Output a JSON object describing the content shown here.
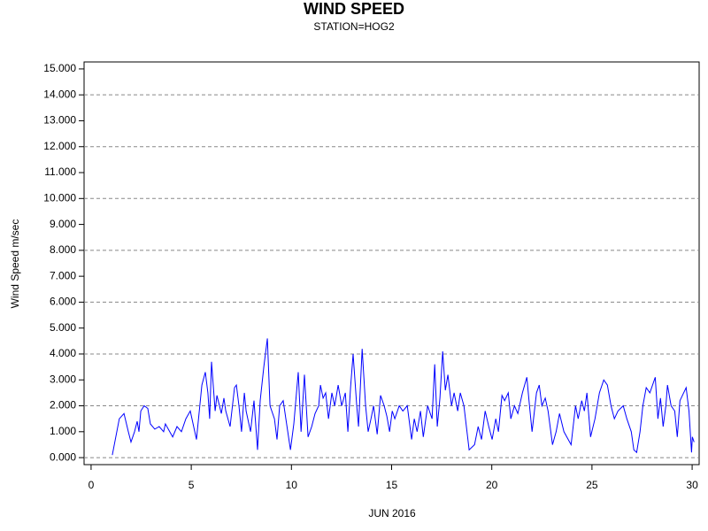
{
  "chart_data": {
    "type": "line",
    "title": "WIND SPEED",
    "subtitle": "STATION=HOG2",
    "x_label": "JUN 2016",
    "y_label": "Wind Speed m/sec",
    "x": [
      1.06,
      1.41,
      1.64,
      1.86,
      1.99,
      2.17,
      2.3,
      2.39,
      2.48,
      2.65,
      2.83,
      2.96,
      3.18,
      3.4,
      3.62,
      3.71,
      4.07,
      4.29,
      4.51,
      4.73,
      4.95,
      5.26,
      5.53,
      5.7,
      5.83,
      5.92,
      6.01,
      6.19,
      6.28,
      6.5,
      6.63,
      6.72,
      6.94,
      7.16,
      7.25,
      7.38,
      7.51,
      7.65,
      7.74,
      7.96,
      8.13,
      8.31,
      8.44,
      8.62,
      8.8,
      8.93,
      9.15,
      9.28,
      9.41,
      9.59,
      9.72,
      9.95,
      10.12,
      10.34,
      10.48,
      10.65,
      10.83,
      11.01,
      11.18,
      11.36,
      11.45,
      11.58,
      11.71,
      11.85,
      12.02,
      12.16,
      12.33,
      12.51,
      12.69,
      12.82,
      12.95,
      13.08,
      13.26,
      13.35,
      13.53,
      13.7,
      13.83,
      13.97,
      14.1,
      14.28,
      14.45,
      14.63,
      14.76,
      14.9,
      15.03,
      15.16,
      15.38,
      15.56,
      15.78,
      16.0,
      16.13,
      16.27,
      16.44,
      16.58,
      16.8,
      17.02,
      17.15,
      17.28,
      17.41,
      17.55,
      17.68,
      17.81,
      17.99,
      18.12,
      18.3,
      18.43,
      18.61,
      18.87,
      19.14,
      19.32,
      19.49,
      19.67,
      19.85,
      20.02,
      20.2,
      20.33,
      20.51,
      20.64,
      20.82,
      20.95,
      21.13,
      21.3,
      21.53,
      21.75,
      21.88,
      22.01,
      22.23,
      22.37,
      22.5,
      22.67,
      22.81,
      23.03,
      23.21,
      23.38,
      23.6,
      23.96,
      24.18,
      24.31,
      24.49,
      24.62,
      24.75,
      24.93,
      25.15,
      25.37,
      25.59,
      25.77,
      25.95,
      26.12,
      26.3,
      26.56,
      26.74,
      26.96,
      27.09,
      27.23,
      27.4,
      27.54,
      27.71,
      27.89,
      28.16,
      28.29,
      28.42,
      28.55,
      28.69,
      28.77,
      28.95,
      29.13,
      29.26,
      29.39,
      29.7,
      29.84,
      29.97,
      30.01,
      30.1
    ],
    "series": [
      {
        "name": "Wind Speed",
        "color": "#0000ff",
        "values": [
          0.1,
          1.5,
          1.7,
          1.0,
          0.6,
          1.0,
          1.4,
          1.0,
          1.8,
          2.0,
          1.9,
          1.3,
          1.1,
          1.2,
          1.0,
          1.3,
          0.8,
          1.2,
          1.0,
          1.5,
          1.8,
          0.7,
          2.8,
          3.3,
          2.5,
          1.5,
          3.7,
          1.8,
          2.4,
          1.7,
          2.3,
          1.8,
          1.2,
          2.7,
          2.8,
          2.0,
          1.0,
          2.5,
          1.8,
          1.0,
          2.2,
          0.3,
          2.2,
          3.5,
          4.6,
          2.0,
          1.5,
          0.7,
          2.0,
          2.2,
          1.5,
          0.3,
          1.3,
          3.3,
          1.0,
          3.2,
          0.8,
          1.2,
          1.7,
          2.0,
          2.8,
          2.3,
          2.5,
          1.5,
          2.5,
          2.0,
          2.8,
          2.0,
          2.5,
          1.0,
          2.7,
          4.0,
          2.0,
          1.2,
          4.2,
          2.0,
          1.0,
          1.5,
          2.0,
          0.9,
          2.4,
          2.0,
          1.6,
          1.0,
          1.8,
          1.5,
          2.0,
          1.8,
          2.0,
          0.7,
          1.5,
          1.0,
          1.8,
          0.8,
          2.0,
          1.5,
          3.6,
          1.2,
          2.3,
          4.1,
          2.6,
          3.2,
          2.0,
          2.5,
          1.8,
          2.5,
          2.0,
          0.3,
          0.5,
          1.2,
          0.7,
          1.8,
          1.2,
          0.7,
          1.5,
          1.0,
          2.4,
          2.2,
          2.5,
          1.5,
          2.0,
          1.7,
          2.5,
          3.1,
          2.0,
          1.0,
          2.5,
          2.8,
          2.0,
          2.3,
          1.8,
          0.5,
          1.0,
          1.7,
          1.0,
          0.5,
          2.0,
          1.5,
          2.2,
          1.8,
          2.5,
          0.8,
          1.5,
          2.5,
          3.0,
          2.8,
          2.0,
          1.5,
          1.8,
          2.0,
          1.5,
          1.0,
          0.3,
          0.2,
          1.0,
          2.0,
          2.7,
          2.5,
          3.1,
          1.5,
          2.3,
          1.2,
          2.0,
          2.8,
          2.0,
          1.8,
          0.8,
          2.2,
          2.7,
          1.8,
          0.2,
          0.8,
          0.6
        ]
      }
    ],
    "xlim": [
      -0.35,
      30.35
    ],
    "xticks": [
      0,
      5,
      10,
      15,
      20,
      25,
      30
    ],
    "ylim": [
      -0.27,
      15.27
    ],
    "yticks": [
      {
        "value": 0,
        "label": "0.000"
      },
      {
        "value": 1,
        "label": "1.000"
      },
      {
        "value": 2,
        "label": "2.000"
      },
      {
        "value": 3,
        "label": "3.000"
      },
      {
        "value": 4,
        "label": "4.000"
      },
      {
        "value": 5,
        "label": "5.000"
      },
      {
        "value": 6,
        "label": "6.000"
      },
      {
        "value": 7,
        "label": "7.000"
      },
      {
        "value": 8,
        "label": "8.000"
      },
      {
        "value": 9,
        "label": "9.000"
      },
      {
        "value": 10,
        "label": "10.000"
      },
      {
        "value": 11,
        "label": "11.000"
      },
      {
        "value": 12,
        "label": "12.000"
      },
      {
        "value": 13,
        "label": "13.000"
      },
      {
        "value": 14,
        "label": "14.000"
      },
      {
        "value": 15,
        "label": "15.000"
      }
    ],
    "grid_lines": [
      0,
      2,
      4,
      6,
      8,
      10,
      12,
      14
    ]
  }
}
